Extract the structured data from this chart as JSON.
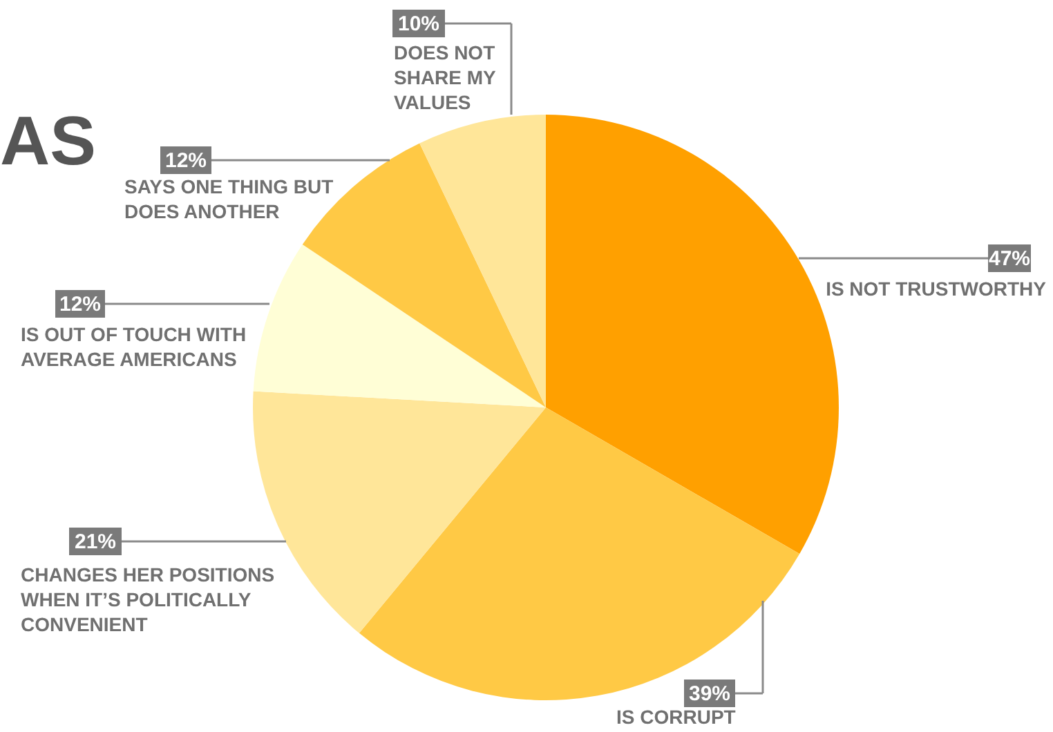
{
  "chart_data": {
    "type": "pie",
    "title": "AS",
    "categories": [
      "IS NOT TRUSTWORTHY",
      "IS CORRUPT",
      "CHANGES HER POSITIONS WHEN IT’S POLITICALLY CONVENIENT",
      "IS OUT OF TOUCH WITH AVERAGE AMERICANS",
      "SAYS ONE THING BUT DOES ANOTHER",
      "DOES NOT SHARE MY VALUES"
    ],
    "values": [
      47,
      39,
      21,
      12,
      12,
      10
    ],
    "value_labels": [
      "47%",
      "39%",
      "21%",
      "12%",
      "12%",
      "10%"
    ],
    "colors": [
      "#ffa000",
      "#ffc945",
      "#ffe699",
      "#fffed6",
      "#ffc945",
      "#ffe699"
    ]
  }
}
